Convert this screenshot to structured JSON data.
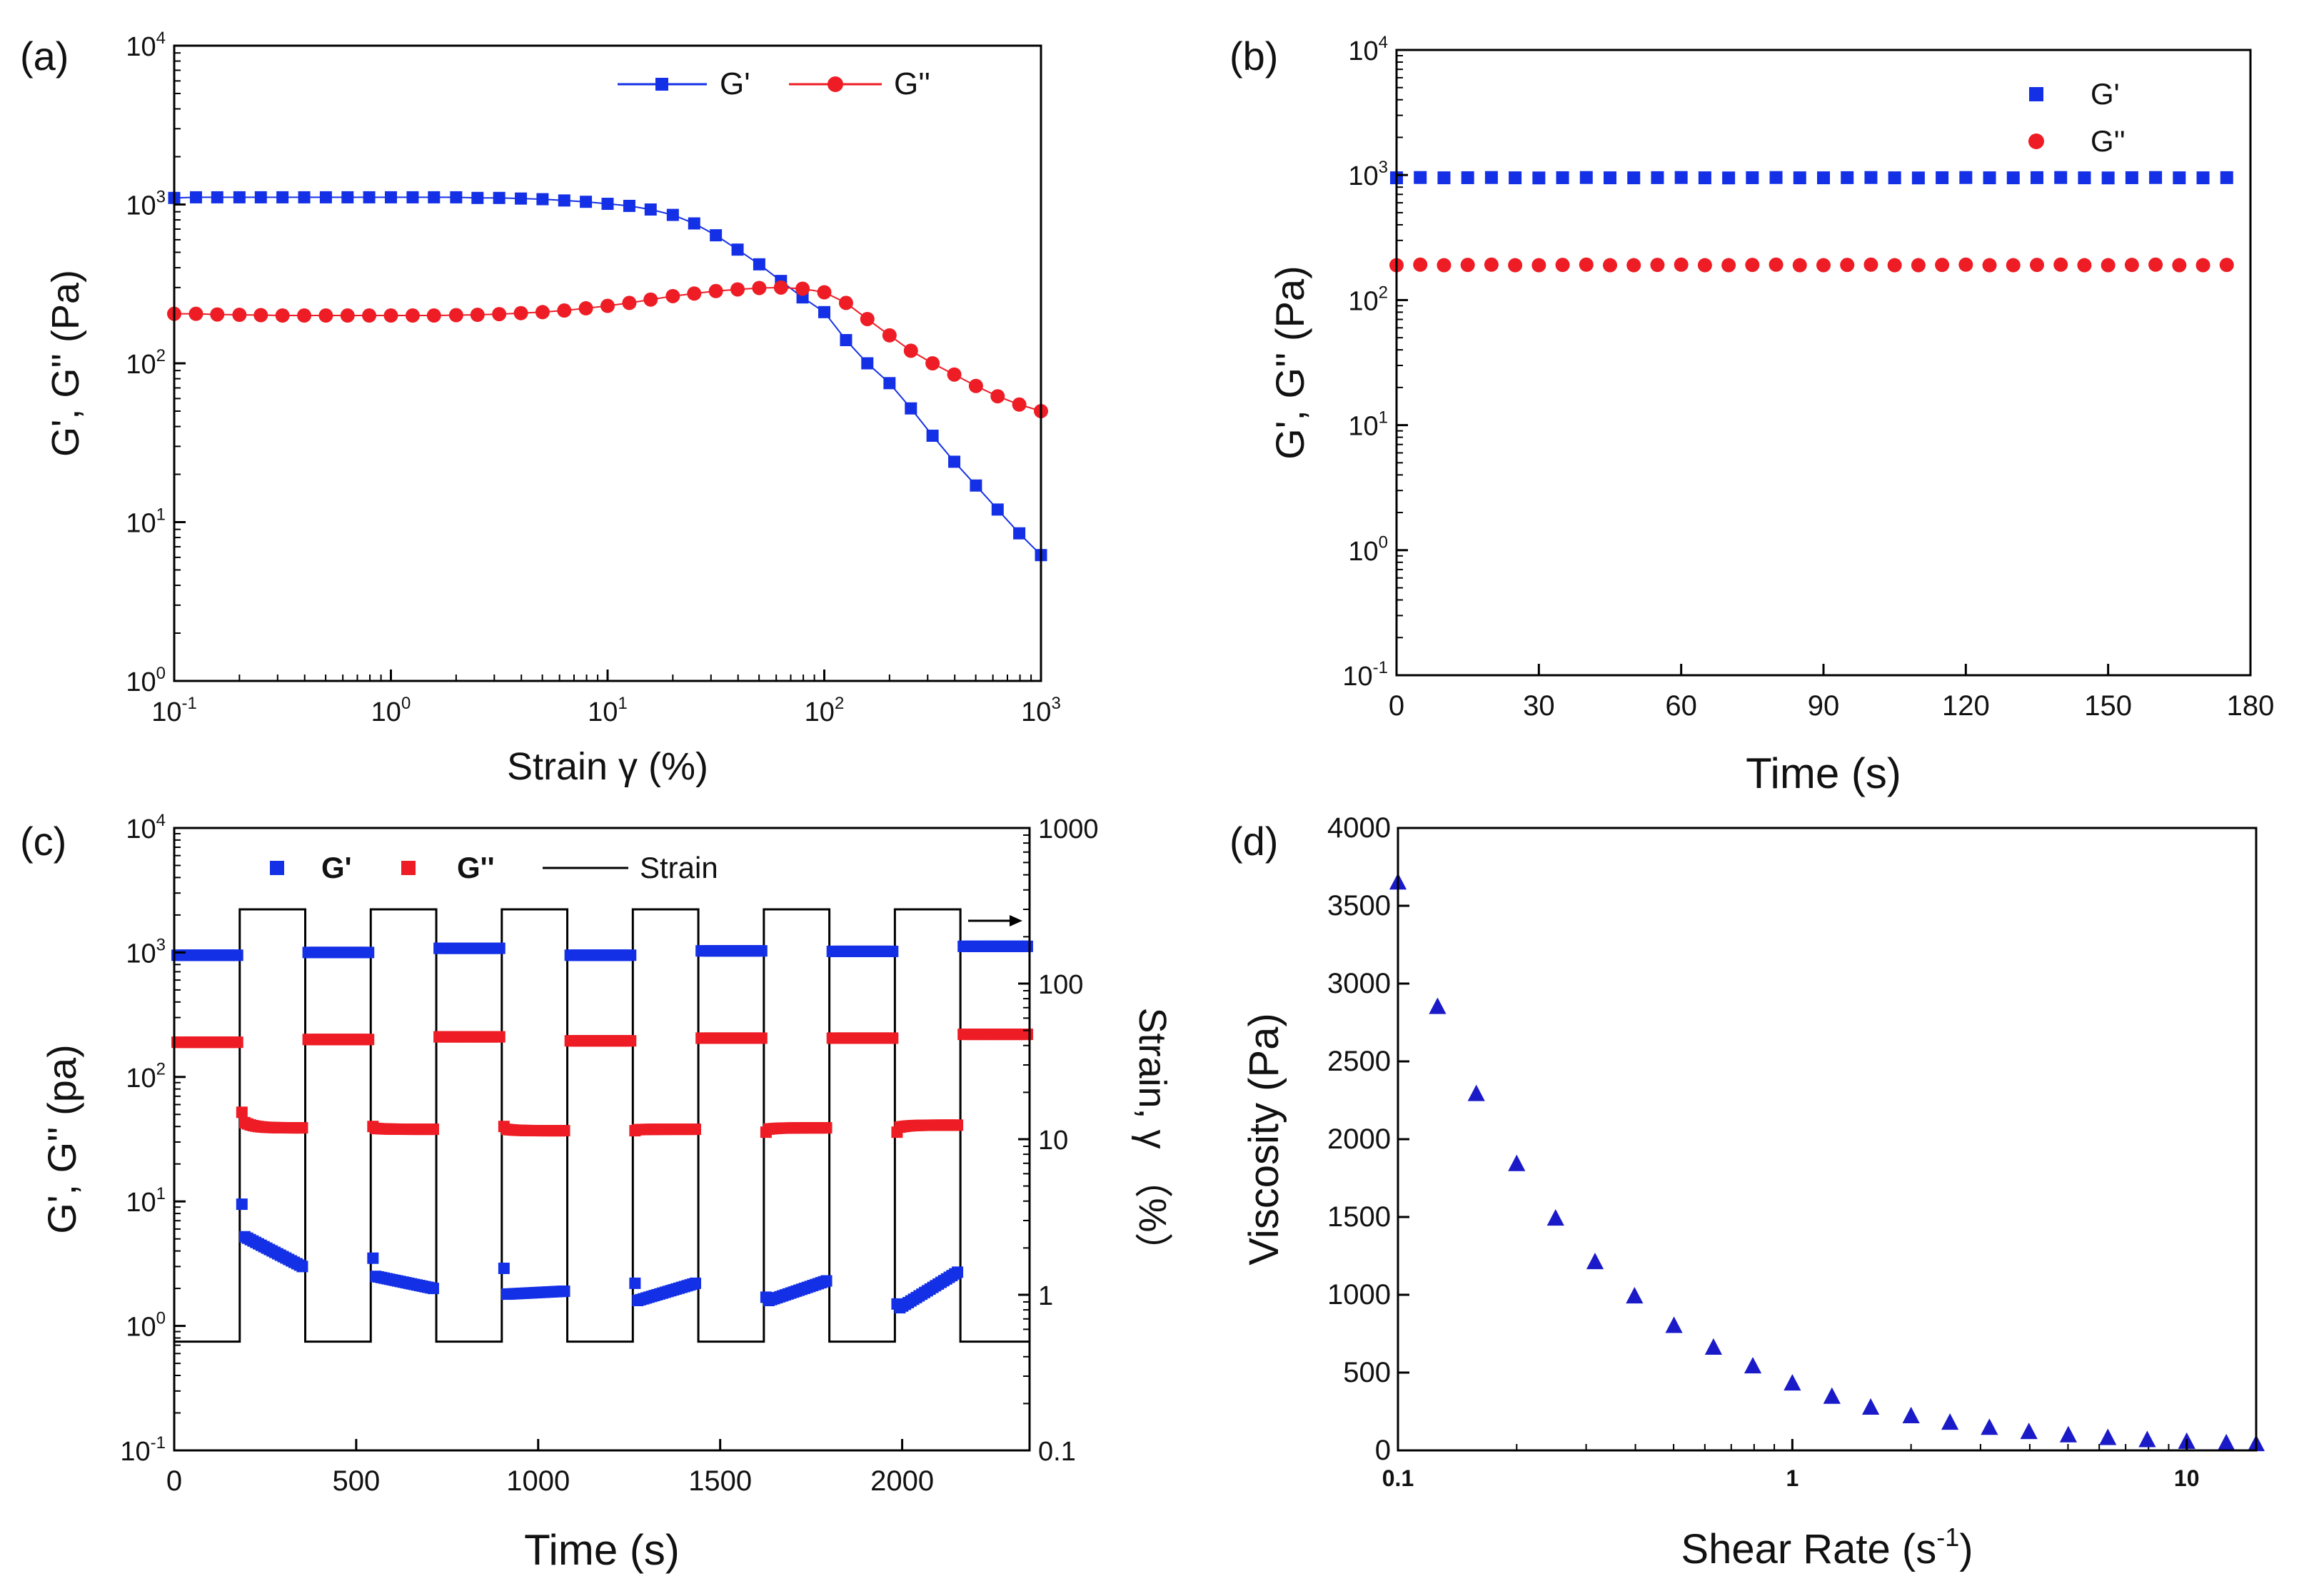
{
  "colors": {
    "gp": "#1430e6",
    "gpp": "#ee1c24",
    "strain": "#000000",
    "d": "#1a1ac8"
  },
  "chart_data": [
    {
      "id": "a",
      "panel_label": "(a)",
      "type": "line",
      "x_scale": "log",
      "y_scale": "log",
      "xlim": [
        0.1,
        1000
      ],
      "ylim": [
        1,
        10000
      ],
      "xlabel": "Strain γ (%)",
      "ylabel": "G', G'' (Pa)",
      "x_ticks": [
        {
          "v": 0.1,
          "base": "10",
          "exp": "-1"
        },
        {
          "v": 1,
          "base": "10",
          "exp": "0"
        },
        {
          "v": 10,
          "base": "10",
          "exp": "1"
        },
        {
          "v": 100,
          "base": "10",
          "exp": "2"
        },
        {
          "v": 1000,
          "base": "10",
          "exp": "3"
        }
      ],
      "y_ticks": [
        {
          "v": 1,
          "base": "10",
          "exp": "0"
        },
        {
          "v": 10,
          "base": "10",
          "exp": "1"
        },
        {
          "v": 100,
          "base": "10",
          "exp": "2"
        },
        {
          "v": 1000,
          "base": "10",
          "exp": "3"
        },
        {
          "v": 10000,
          "base": "10",
          "exp": "4"
        }
      ],
      "legend": [
        "G'",
        "G''"
      ],
      "x": [
        0.1,
        0.126,
        0.158,
        0.2,
        0.251,
        0.316,
        0.398,
        0.501,
        0.631,
        0.794,
        1.0,
        1.26,
        1.58,
        2.0,
        2.51,
        3.16,
        3.98,
        5.01,
        6.31,
        7.94,
        10.0,
        12.6,
        15.8,
        20.0,
        25.1,
        31.6,
        39.8,
        50.1,
        63.1,
        79.4,
        100,
        126,
        158,
        200,
        251,
        316,
        398,
        501,
        631,
        794,
        1000
      ],
      "series": [
        {
          "name": "G'",
          "marker": "square",
          "values": [
            1100,
            1110,
            1110,
            1110,
            1110,
            1110,
            1110,
            1110,
            1110,
            1110,
            1110,
            1110,
            1110,
            1110,
            1100,
            1100,
            1090,
            1080,
            1060,
            1040,
            1010,
            980,
            930,
            860,
            760,
            640,
            520,
            420,
            330,
            260,
            210,
            140,
            100,
            75,
            52,
            35,
            24,
            17,
            12,
            8.5,
            6.2
          ]
        },
        {
          "name": "G''",
          "marker": "circle",
          "values": [
            205,
            205,
            203,
            202,
            201,
            200,
            200,
            200,
            200,
            200,
            200,
            200,
            200,
            201,
            202,
            204,
            207,
            210,
            215,
            222,
            230,
            240,
            252,
            265,
            275,
            285,
            292,
            298,
            300,
            295,
            280,
            240,
            190,
            150,
            120,
            100,
            85,
            72,
            62,
            55,
            50
          ]
        }
      ]
    },
    {
      "id": "b",
      "panel_label": "(b)",
      "type": "scatter",
      "x_scale": "linear",
      "y_scale": "log",
      "xlim": [
        0,
        180
      ],
      "ylim": [
        0.1,
        10000
      ],
      "xlabel": "Time (s)",
      "ylabel": "G', G'' (Pa)",
      "x_ticks": [
        {
          "v": 0,
          "label": "0"
        },
        {
          "v": 30,
          "label": "30"
        },
        {
          "v": 60,
          "label": "60"
        },
        {
          "v": 90,
          "label": "90"
        },
        {
          "v": 120,
          "label": "120"
        },
        {
          "v": 150,
          "label": "150"
        },
        {
          "v": 180,
          "label": "180"
        }
      ],
      "y_ticks": [
        {
          "v": 0.1,
          "base": "10",
          "exp": "-1"
        },
        {
          "v": 1,
          "base": "10",
          "exp": "0"
        },
        {
          "v": 10,
          "base": "10",
          "exp": "1"
        },
        {
          "v": 100,
          "base": "10",
          "exp": "2"
        },
        {
          "v": 1000,
          "base": "10",
          "exp": "3"
        },
        {
          "v": 10000,
          "base": "10",
          "exp": "4"
        }
      ],
      "legend": [
        "G'",
        "G''"
      ],
      "x": [
        0,
        5,
        10,
        15,
        20,
        25,
        30,
        35,
        40,
        45,
        50,
        55,
        60,
        65,
        70,
        75,
        80,
        85,
        90,
        95,
        100,
        105,
        110,
        115,
        120,
        125,
        130,
        135,
        140,
        145,
        150,
        155,
        160,
        165,
        170,
        175
      ],
      "series": [
        {
          "name": "G'",
          "marker": "square",
          "values": [
            950,
            955,
            950,
            952,
            955,
            950,
            948,
            952,
            955,
            950,
            950,
            953,
            955,
            950,
            948,
            952,
            955,
            950,
            950,
            953,
            955,
            950,
            948,
            952,
            955,
            950,
            950,
            953,
            955,
            950,
            948,
            952,
            955,
            950,
            950,
            953
          ]
        },
        {
          "name": "G''",
          "marker": "circle",
          "values": [
            190,
            192,
            190,
            191,
            192,
            190,
            190,
            191,
            192,
            190,
            190,
            191,
            192,
            190,
            190,
            191,
            192,
            190,
            190,
            191,
            192,
            190,
            190,
            191,
            192,
            190,
            190,
            191,
            192,
            190,
            190,
            191,
            192,
            190,
            190,
            191
          ]
        }
      ]
    },
    {
      "id": "c",
      "panel_label": "(c)",
      "type": "scatter",
      "x_scale": "linear",
      "y_scale": "log",
      "xlim": [
        0,
        2350
      ],
      "ylim": [
        0.1,
        10000
      ],
      "y2lim": [
        0.1,
        1000
      ],
      "xlabel": "Time (s)",
      "ylabel": "G', G'' (pa)",
      "y2label": "Strain, γ （%）",
      "x_ticks": [
        {
          "v": 0,
          "label": "0"
        },
        {
          "v": 500,
          "label": "500"
        },
        {
          "v": 1000,
          "label": "1000"
        },
        {
          "v": 1500,
          "label": "1500"
        },
        {
          "v": 2000,
          "label": "2000"
        }
      ],
      "y_ticks": [
        {
          "v": 0.1,
          "base": "10",
          "exp": "-1"
        },
        {
          "v": 1,
          "base": "10",
          "exp": "0"
        },
        {
          "v": 10,
          "base": "10",
          "exp": "1"
        },
        {
          "v": 100,
          "base": "10",
          "exp": "2"
        },
        {
          "v": 1000,
          "base": "10",
          "exp": "3"
        },
        {
          "v": 10000,
          "base": "10",
          "exp": "4"
        }
      ],
      "y2_ticks": [
        {
          "v": 0.1,
          "label": "0.1"
        },
        {
          "v": 1,
          "label": "1"
        },
        {
          "v": 10,
          "label": "10"
        },
        {
          "v": 100,
          "label": "100"
        },
        {
          "v": 1000,
          "label": "1000"
        }
      ],
      "legend": [
        "G'",
        "G''",
        "Strain"
      ],
      "strain_low": 0.5,
      "strain_high": 300,
      "cycle_boundaries": [
        0,
        180,
        360,
        540,
        720,
        900,
        1080,
        1260,
        1440,
        1620,
        1800,
        1980,
        2160,
        2350
      ],
      "low_segments": [
        {
          "x0": 0,
          "x1": 180,
          "gp": 950,
          "gpp": 190
        },
        {
          "x0": 360,
          "x1": 540,
          "gp": 1000,
          "gpp": 200
        },
        {
          "x0": 720,
          "x1": 900,
          "gp": 1080,
          "gpp": 210
        },
        {
          "x0": 1080,
          "x1": 1260,
          "gp": 950,
          "gpp": 195
        },
        {
          "x0": 1440,
          "x1": 1620,
          "gp": 1030,
          "gpp": 205
        },
        {
          "x0": 1800,
          "x1": 1980,
          "gp": 1020,
          "gpp": 205
        },
        {
          "x0": 2160,
          "x1": 2350,
          "gp": 1120,
          "gpp": 220
        }
      ],
      "high_segments": [
        {
          "x0": 180,
          "x1": 360,
          "gp_start": 9.5,
          "gp_after": 5.2,
          "gp_end": 3.0,
          "gpp_start": 52,
          "gpp_end": 39
        },
        {
          "x0": 540,
          "x1": 720,
          "gp_start": 3.5,
          "gp_after": 2.5,
          "gp_end": 2.0,
          "gpp_start": 40,
          "gpp_end": 38
        },
        {
          "x0": 900,
          "x1": 1080,
          "gp_start": 2.9,
          "gp_after": 1.8,
          "gp_end": 1.9,
          "gpp_start": 40,
          "gpp_end": 37
        },
        {
          "x0": 1260,
          "x1": 1440,
          "gp_start": 2.2,
          "gp_after": 1.6,
          "gp_end": 2.2,
          "gpp_start": 37,
          "gpp_end": 38
        },
        {
          "x0": 1620,
          "x1": 1800,
          "gp_start": 1.7,
          "gp_after": 1.6,
          "gp_end": 2.3,
          "gpp_start": 36,
          "gpp_end": 39
        },
        {
          "x0": 1980,
          "x1": 2160,
          "gp_start": 1.5,
          "gp_after": 1.4,
          "gp_end": 2.7,
          "gpp_start": 36,
          "gpp_end": 41
        }
      ]
    },
    {
      "id": "d",
      "panel_label": "(d)",
      "type": "scatter",
      "x_scale": "log",
      "y_scale": "linear",
      "xlim": [
        0.1,
        15
      ],
      "ylim": [
        0,
        4000
      ],
      "xlabel": "Shear Rate (s",
      "xlabel_sup": "-1",
      "xlabel_close": ")",
      "ylabel": "Viscosity (Pa)",
      "x_ticks": [
        {
          "v": 0.1,
          "label": "0.1"
        },
        {
          "v": 1,
          "label": "1"
        },
        {
          "v": 10,
          "label": "10"
        }
      ],
      "y_ticks": [
        {
          "v": 0,
          "label": "0"
        },
        {
          "v": 500,
          "label": "500"
        },
        {
          "v": 1000,
          "label": "1000"
        },
        {
          "v": 1500,
          "label": "1500"
        },
        {
          "v": 2000,
          "label": "2000"
        },
        {
          "v": 2500,
          "label": "2500"
        },
        {
          "v": 3000,
          "label": "3000"
        },
        {
          "v": 3500,
          "label": "3500"
        },
        {
          "v": 4000,
          "label": "4000"
        }
      ],
      "x": [
        0.1,
        0.126,
        0.158,
        0.2,
        0.251,
        0.316,
        0.398,
        0.501,
        0.631,
        0.794,
        1.0,
        1.26,
        1.58,
        2.0,
        2.51,
        3.16,
        3.98,
        5.01,
        6.31,
        7.94,
        10.0,
        12.6,
        15.0
      ],
      "series": [
        {
          "name": "Viscosity",
          "marker": "triangle",
          "values": [
            3650,
            2850,
            2290,
            1840,
            1490,
            1210,
            990,
            800,
            660,
            540,
            430,
            345,
            275,
            220,
            178,
            145,
            118,
            97,
            80,
            66,
            55,
            46,
            40
          ]
        }
      ]
    }
  ]
}
